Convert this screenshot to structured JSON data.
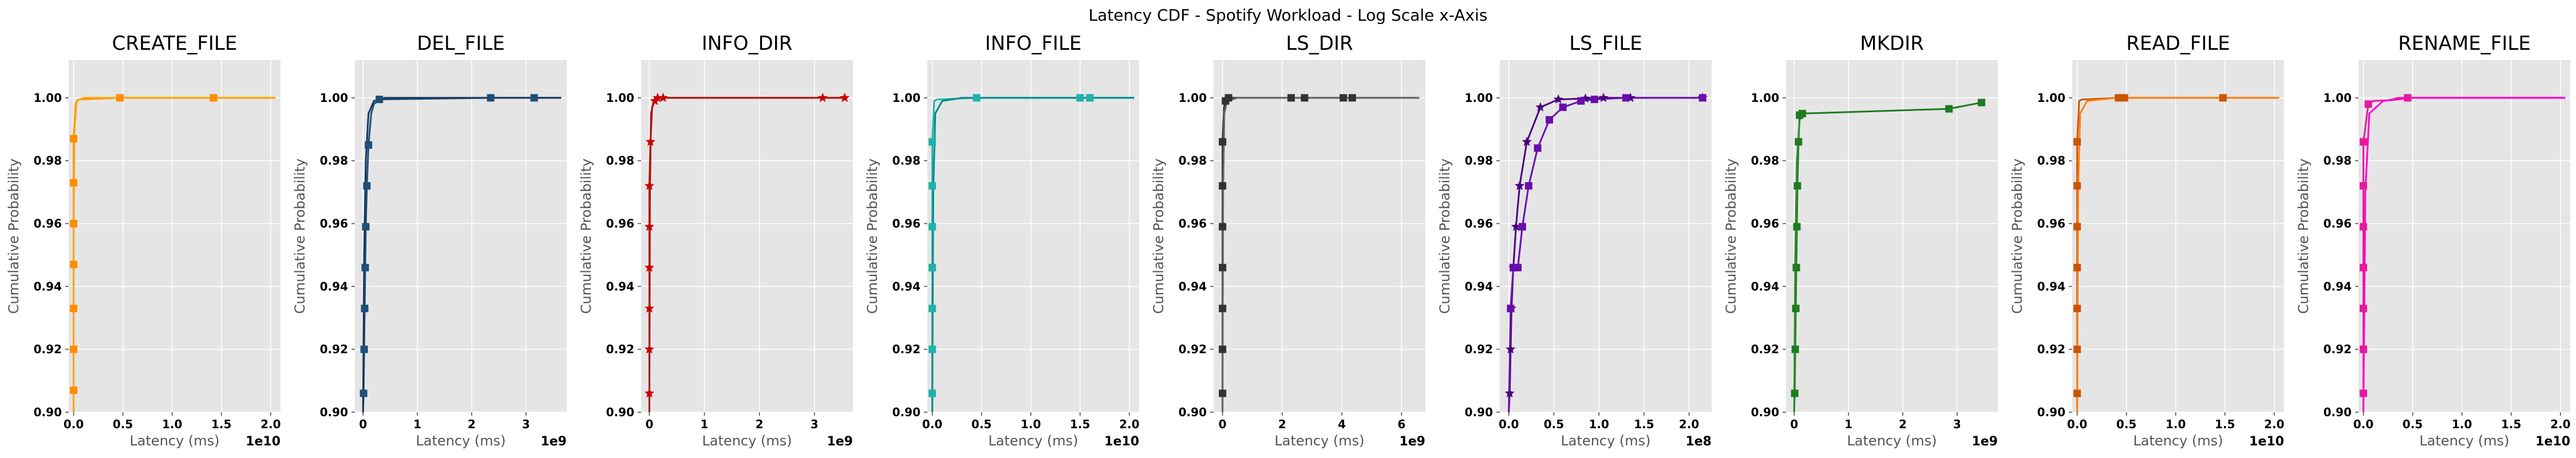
{
  "figure": {
    "title": "Latency CDF - Spotify Workload - Log Scale x-Axis"
  },
  "chart_data": [
    {
      "type": "line",
      "title": "CREATE_FILE",
      "xlabel": "Latency (ms)",
      "ylabel": "Cumulative Probability",
      "x_offset_label": "1e10",
      "xlim": [
        -0.05,
        2.1
      ],
      "ylim": [
        0.9,
        1.012
      ],
      "xticks": [
        0.0,
        0.5,
        1.0,
        1.5,
        2.0
      ],
      "xtick_labels": [
        "0.0",
        "0.5",
        "1.0",
        "1.5",
        "2.0"
      ],
      "yticks": [
        0.9,
        0.92,
        0.94,
        0.96,
        0.98,
        1.0
      ],
      "ytick_labels": [
        "0.90",
        "0.92",
        "0.94",
        "0.96",
        "0.98",
        "1.00"
      ],
      "grid": true,
      "series": [
        {
          "color": "#ff8c00",
          "marker": "square",
          "x": [
            0.0,
            0.0,
            0.0,
            0.0,
            0.0,
            0.0,
            0.0,
            0.0,
            0.02,
            0.05,
            0.47,
            1.42,
            2.05
          ],
          "y": [
            0.9,
            0.907,
            0.92,
            0.933,
            0.947,
            0.96,
            0.973,
            0.987,
            0.998,
            0.9995,
            1.0,
            1.0,
            1.0
          ],
          "marker_idx": [
            1,
            2,
            3,
            4,
            5,
            6,
            7,
            10,
            11
          ]
        },
        {
          "color": "#ffa500",
          "marker": "circle",
          "x": [
            0.0,
            0.0,
            0.01,
            0.03,
            0.1,
            0.5,
            1.0,
            2.05
          ],
          "y": [
            0.9,
            0.96,
            0.99,
            0.999,
            1.0,
            1.0,
            1.0,
            1.0
          ],
          "marker_idx": []
        }
      ]
    },
    {
      "type": "line",
      "title": "DEL_FILE",
      "xlabel": "Latency (ms)",
      "ylabel": "Cumulative Probability",
      "x_offset_label": "1e9",
      "xlim": [
        -0.15,
        3.75
      ],
      "ylim": [
        0.9,
        1.012
      ],
      "xticks": [
        0,
        1,
        2,
        3
      ],
      "xtick_labels": [
        "0",
        "1",
        "2",
        "3"
      ],
      "yticks": [
        0.9,
        0.92,
        0.94,
        0.96,
        0.98,
        1.0
      ],
      "ytick_labels": [
        "0.90",
        "0.92",
        "0.94",
        "0.96",
        "0.98",
        "1.00"
      ],
      "grid": true,
      "series": [
        {
          "color": "#1f4e79",
          "marker": "square",
          "x": [
            0.0,
            0.01,
            0.02,
            0.03,
            0.04,
            0.05,
            0.07,
            0.1,
            0.15,
            0.2,
            0.3,
            2.35,
            3.15,
            3.65
          ],
          "y": [
            0.9,
            0.906,
            0.92,
            0.933,
            0.946,
            0.959,
            0.972,
            0.985,
            0.995,
            0.998,
            0.9995,
            1.0,
            1.0,
            1.0
          ],
          "marker_idx": [
            1,
            2,
            3,
            4,
            5,
            6,
            7,
            10,
            11,
            12
          ]
        },
        {
          "color": "#17375e",
          "marker": "circle",
          "x": [
            0.0,
            0.02,
            0.05,
            0.1,
            0.2,
            0.4,
            1.0,
            3.65
          ],
          "y": [
            0.9,
            0.95,
            0.98,
            0.995,
            0.999,
            1.0,
            1.0,
            1.0
          ],
          "marker_idx": []
        }
      ]
    },
    {
      "type": "line",
      "title": "INFO_DIR",
      "xlabel": "Latency (ms)",
      "ylabel": "Cumulative Probability",
      "x_offset_label": "1e9",
      "xlim": [
        -0.15,
        3.7
      ],
      "ylim": [
        0.9,
        1.012
      ],
      "xticks": [
        0,
        1,
        2,
        3
      ],
      "xtick_labels": [
        "0",
        "1",
        "2",
        "3"
      ],
      "yticks": [
        0.9,
        0.92,
        0.94,
        0.96,
        0.98,
        1.0
      ],
      "ytick_labels": [
        "0.90",
        "0.92",
        "0.94",
        "0.96",
        "0.98",
        "1.00"
      ],
      "grid": true,
      "series": [
        {
          "color": "#cc0000",
          "marker": "star",
          "x": [
            0.0,
            0.0,
            0.0,
            0.0,
            0.0,
            0.0,
            0.0,
            0.02,
            0.05,
            0.1,
            0.15,
            0.25,
            3.15,
            3.55
          ],
          "y": [
            0.9,
            0.906,
            0.92,
            0.933,
            0.946,
            0.959,
            0.972,
            0.986,
            0.997,
            0.999,
            1.0,
            1.0,
            1.0,
            1.0
          ],
          "marker_idx": [
            1,
            2,
            3,
            4,
            5,
            6,
            7,
            9,
            10,
            11,
            12,
            13
          ]
        },
        {
          "color": "#aa1111",
          "marker": "circle",
          "x": [
            0.0,
            0.01,
            0.03,
            0.08,
            0.2,
            1.0,
            3.55
          ],
          "y": [
            0.9,
            0.97,
            0.995,
            0.999,
            1.0,
            1.0,
            1.0
          ],
          "marker_idx": []
        }
      ]
    },
    {
      "type": "line",
      "title": "INFO_FILE",
      "xlabel": "Latency (ms)",
      "ylabel": "Cumulative Probability",
      "x_offset_label": "1e10",
      "xlim": [
        -0.05,
        2.1
      ],
      "ylim": [
        0.9,
        1.012
      ],
      "xticks": [
        0.0,
        0.5,
        1.0,
        1.5,
        2.0
      ],
      "xtick_labels": [
        "0.0",
        "0.5",
        "1.0",
        "1.5",
        "2.0"
      ],
      "yticks": [
        0.9,
        0.92,
        0.94,
        0.96,
        0.98,
        1.0
      ],
      "ytick_labels": [
        "0.90",
        "0.92",
        "0.94",
        "0.96",
        "0.98",
        "1.00"
      ],
      "grid": true,
      "series": [
        {
          "color": "#20b2aa",
          "marker": "square",
          "x": [
            0.0,
            0.0,
            0.0,
            0.0,
            0.0,
            0.0,
            0.0,
            0.0,
            0.02,
            0.05,
            0.45,
            1.5,
            1.6,
            2.05
          ],
          "y": [
            0.9,
            0.906,
            0.92,
            0.933,
            0.946,
            0.959,
            0.972,
            0.986,
            0.999,
            0.9995,
            1.0,
            1.0,
            1.0,
            1.0
          ],
          "marker_idx": [
            1,
            2,
            3,
            4,
            5,
            6,
            7,
            10,
            11,
            12
          ]
        },
        {
          "color": "#008b8b",
          "marker": "circle",
          "x": [
            0.0,
            0.01,
            0.03,
            0.1,
            0.3,
            0.65,
            2.05
          ],
          "y": [
            0.9,
            0.97,
            0.995,
            0.999,
            1.0,
            1.0,
            1.0
          ],
          "marker_idx": []
        }
      ]
    },
    {
      "type": "line",
      "title": "LS_DIR",
      "xlabel": "Latency (ms)",
      "ylabel": "Cumulative Probability",
      "x_offset_label": "1e9",
      "xlim": [
        -0.3,
        6.8
      ],
      "ylim": [
        0.9,
        1.012
      ],
      "xticks": [
        0,
        2,
        4,
        6
      ],
      "xtick_labels": [
        "0",
        "2",
        "4",
        "6"
      ],
      "yticks": [
        0.9,
        0.92,
        0.94,
        0.96,
        0.98,
        1.0
      ],
      "ytick_labels": [
        "0.90",
        "0.92",
        "0.94",
        "0.96",
        "0.98",
        "1.00"
      ],
      "grid": true,
      "series": [
        {
          "color": "#333333",
          "marker": "square",
          "x": [
            0.0,
            0.0,
            0.0,
            0.0,
            0.0,
            0.0,
            0.0,
            0.0,
            0.05,
            0.1,
            0.2,
            2.3,
            2.75,
            4.05,
            4.35,
            6.6
          ],
          "y": [
            0.9,
            0.906,
            0.92,
            0.933,
            0.946,
            0.959,
            0.972,
            0.986,
            0.997,
            0.999,
            1.0,
            1.0,
            1.0,
            1.0,
            1.0,
            1.0
          ],
          "marker_idx": [
            1,
            2,
            3,
            4,
            5,
            6,
            7,
            9,
            10,
            11,
            12,
            13,
            14
          ]
        },
        {
          "color": "#666666",
          "marker": "circle",
          "x": [
            0.0,
            0.02,
            0.06,
            0.15,
            0.5,
            6.6
          ],
          "y": [
            0.9,
            0.97,
            0.995,
            0.999,
            1.0,
            1.0
          ],
          "marker_idx": []
        }
      ]
    },
    {
      "type": "line",
      "title": "LS_FILE",
      "xlabel": "Latency (ms)",
      "ylabel": "Cumulative Probability",
      "x_offset_label": "1e8",
      "xlim": [
        -0.1,
        2.25
      ],
      "ylim": [
        0.9,
        1.012
      ],
      "xticks": [
        0.0,
        0.5,
        1.0,
        1.5,
        2.0
      ],
      "xtick_labels": [
        "0.0",
        "0.5",
        "1.0",
        "1.5",
        "2.0"
      ],
      "yticks": [
        0.9,
        0.92,
        0.94,
        0.96,
        0.98,
        1.0
      ],
      "ytick_labels": [
        "0.90",
        "0.92",
        "0.94",
        "0.96",
        "0.98",
        "1.00"
      ],
      "grid": true,
      "series": [
        {
          "color": "#4b0082",
          "marker": "star",
          "x": [
            0.0,
            0.01,
            0.02,
            0.03,
            0.05,
            0.08,
            0.12,
            0.2,
            0.35,
            0.55,
            0.85,
            1.05,
            1.35,
            2.15
          ],
          "y": [
            0.9,
            0.906,
            0.92,
            0.933,
            0.946,
            0.959,
            0.972,
            0.986,
            0.997,
            0.9995,
            0.9998,
            1.0,
            1.0,
            1.0
          ],
          "marker_idx": [
            1,
            2,
            3,
            4,
            5,
            6,
            7,
            8,
            9,
            10,
            11,
            12,
            13
          ]
        },
        {
          "color": "#6a0dad",
          "marker": "square",
          "x": [
            0.0,
            0.02,
            0.05,
            0.1,
            0.15,
            0.22,
            0.32,
            0.45,
            0.6,
            0.8,
            0.95,
            1.3,
            2.15
          ],
          "y": [
            0.9,
            0.933,
            0.946,
            0.946,
            0.959,
            0.972,
            0.984,
            0.993,
            0.997,
            0.999,
            0.9995,
            1.0,
            1.0
          ],
          "marker_idx": [
            1,
            2,
            3,
            4,
            5,
            6,
            7,
            8,
            9,
            10,
            11,
            12
          ]
        }
      ]
    },
    {
      "type": "line",
      "title": "MKDIR",
      "xlabel": "Latency (ms)",
      "ylabel": "Cumulative Probability",
      "x_offset_label": "1e9",
      "xlim": [
        -0.15,
        3.75
      ],
      "ylim": [
        0.9,
        1.012
      ],
      "xticks": [
        0,
        1,
        2,
        3
      ],
      "xtick_labels": [
        "0",
        "1",
        "2",
        "3"
      ],
      "yticks": [
        0.9,
        0.92,
        0.94,
        0.96,
        0.98,
        1.0
      ],
      "ytick_labels": [
        "0.90",
        "0.92",
        "0.94",
        "0.96",
        "0.98",
        "1.00"
      ],
      "grid": true,
      "series": [
        {
          "color": "#1e7b1e",
          "marker": "square",
          "x": [
            0.0,
            0.01,
            0.02,
            0.03,
            0.04,
            0.05,
            0.06,
            0.08,
            0.1,
            0.15,
            2.85,
            3.45
          ],
          "y": [
            0.9,
            0.906,
            0.92,
            0.933,
            0.946,
            0.959,
            0.972,
            0.986,
            0.9945,
            0.995,
            0.9965,
            0.9985
          ],
          "marker_idx": [
            1,
            2,
            3,
            4,
            5,
            6,
            7,
            8,
            9,
            10,
            11
          ]
        },
        {
          "color": "#2e8b2e",
          "marker": "circle",
          "x": [
            0.0,
            0.02,
            0.05,
            0.1,
            0.2
          ],
          "y": [
            0.9,
            0.95,
            0.98,
            0.993,
            0.995
          ],
          "marker_idx": []
        }
      ]
    },
    {
      "type": "line",
      "title": "READ_FILE",
      "xlabel": "Latency (ms)",
      "ylabel": "Cumulative Probability",
      "x_offset_label": "1e10",
      "xlim": [
        -0.05,
        2.1
      ],
      "ylim": [
        0.9,
        1.012
      ],
      "xticks": [
        0.0,
        0.5,
        1.0,
        1.5,
        2.0
      ],
      "xtick_labels": [
        "0.0",
        "0.5",
        "1.0",
        "1.5",
        "2.0"
      ],
      "yticks": [
        0.9,
        0.92,
        0.94,
        0.96,
        0.98,
        1.0
      ],
      "ytick_labels": [
        "0.90",
        "0.92",
        "0.94",
        "0.96",
        "0.98",
        "1.00"
      ],
      "grid": true,
      "series": [
        {
          "color": "#cc5500",
          "marker": "square",
          "x": [
            0.0,
            0.0,
            0.0,
            0.0,
            0.0,
            0.0,
            0.0,
            0.0,
            0.02,
            0.05,
            0.42,
            0.48,
            1.48,
            2.05
          ],
          "y": [
            0.9,
            0.906,
            0.92,
            0.933,
            0.946,
            0.959,
            0.972,
            0.986,
            0.999,
            0.9995,
            1.0,
            1.0,
            1.0,
            1.0
          ],
          "marker_idx": [
            1,
            2,
            3,
            4,
            5,
            6,
            7,
            10,
            11,
            12
          ]
        },
        {
          "color": "#ff7f0e",
          "marker": "circle",
          "x": [
            0.0,
            0.01,
            0.03,
            0.1,
            0.4,
            2.05
          ],
          "y": [
            0.9,
            0.97,
            0.995,
            0.999,
            1.0,
            1.0
          ],
          "marker_idx": []
        }
      ]
    },
    {
      "type": "line",
      "title": "RENAME_FILE",
      "xlabel": "Latency (ms)",
      "ylabel": "Cumulative Probability",
      "x_offset_label": "1e10",
      "xlim": [
        -0.05,
        2.1
      ],
      "ylim": [
        0.9,
        1.012
      ],
      "xticks": [
        0.0,
        0.5,
        1.0,
        1.5,
        2.0
      ],
      "xtick_labels": [
        "0.0",
        "0.5",
        "1.0",
        "1.5",
        "2.0"
      ],
      "yticks": [
        0.9,
        0.92,
        0.94,
        0.96,
        0.98,
        1.0
      ],
      "ytick_labels": [
        "0.90",
        "0.92",
        "0.94",
        "0.96",
        "0.98",
        "1.00"
      ],
      "grid": true,
      "series": [
        {
          "color": "#e6199e",
          "marker": "square",
          "x": [
            0.0,
            0.0,
            0.0,
            0.0,
            0.0,
            0.0,
            0.0,
            0.0,
            0.05,
            0.1,
            0.25,
            0.35,
            0.45,
            2.05
          ],
          "y": [
            0.9,
            0.906,
            0.92,
            0.933,
            0.946,
            0.959,
            0.972,
            0.986,
            0.998,
            0.999,
            0.9992,
            1.0,
            1.0,
            1.0
          ],
          "marker_idx": [
            1,
            2,
            3,
            4,
            5,
            6,
            7,
            8,
            12
          ]
        },
        {
          "color": "#ff00cc",
          "marker": "circle",
          "x": [
            0.0,
            0.02,
            0.06,
            0.2,
            0.5,
            2.05
          ],
          "y": [
            0.9,
            0.97,
            0.995,
            0.999,
            1.0,
            1.0
          ],
          "marker_idx": []
        }
      ]
    }
  ]
}
